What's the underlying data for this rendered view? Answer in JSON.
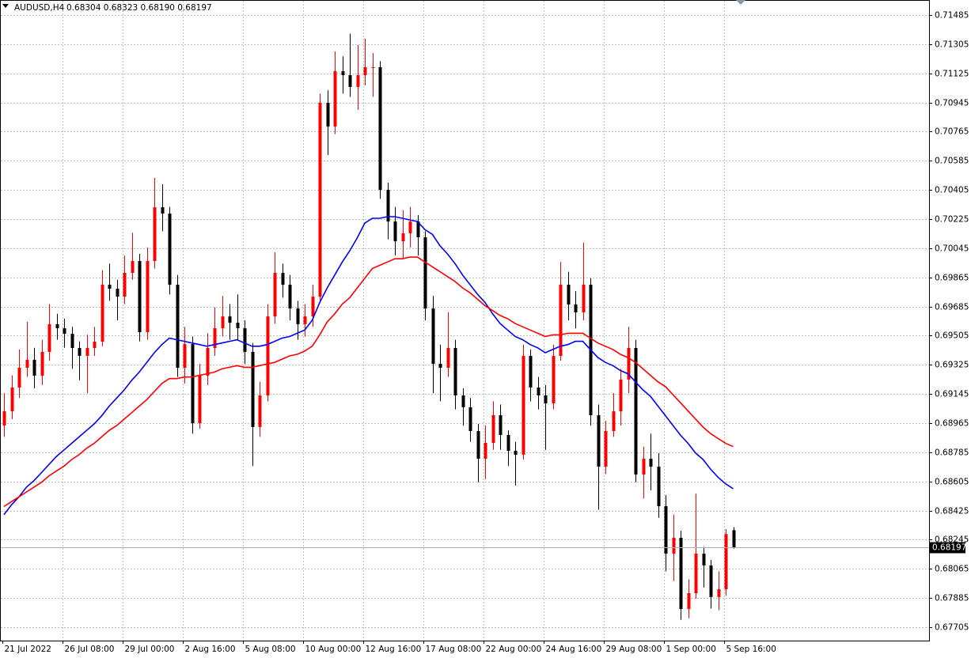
{
  "chart_data": {
    "type": "candlestick",
    "title": "AUDUSD,H4",
    "info": "0.68304 0.68323 0.68190 0.68197",
    "up_color": "#ff0000",
    "down_color": "#000000",
    "grid": true,
    "ylim": [
      0.67622,
      0.71578
    ],
    "yticks": [
      0.71485,
      0.71305,
      0.71125,
      0.70945,
      0.70765,
      0.70585,
      0.70405,
      0.70225,
      0.70045,
      0.69865,
      0.69685,
      0.69505,
      0.69325,
      0.69145,
      0.68965,
      0.68785,
      0.68605,
      0.68425,
      0.68245,
      0.68065,
      0.67885,
      0.67705
    ],
    "last_price": 0.68197,
    "categories": [
      "21 Jul 2022",
      null,
      null,
      null,
      null,
      null,
      null,
      null,
      "26 Jul 08:00",
      null,
      null,
      null,
      null,
      null,
      null,
      null,
      "29 Jul 00:00",
      null,
      null,
      null,
      null,
      null,
      null,
      null,
      "2 Aug 16:00",
      null,
      null,
      null,
      null,
      null,
      null,
      null,
      "5 Aug 08:00",
      null,
      null,
      null,
      null,
      null,
      null,
      null,
      "10 Aug 00:00",
      null,
      null,
      null,
      null,
      null,
      null,
      null,
      "12 Aug 16:00",
      null,
      null,
      null,
      null,
      null,
      null,
      null,
      "17 Aug 08:00",
      null,
      null,
      null,
      null,
      null,
      null,
      null,
      "22 Aug 00:00",
      null,
      null,
      null,
      null,
      null,
      null,
      null,
      "24 Aug 16:00",
      null,
      null,
      null,
      null,
      null,
      null,
      null,
      "29 Aug 08:00",
      null,
      null,
      null,
      null,
      null,
      null,
      null,
      "1 Sep 00:00",
      null,
      null,
      null,
      null,
      null,
      null,
      null,
      "5 Sep 16:00",
      null
    ],
    "open": [
      0.6895,
      0.69038,
      0.69185,
      0.69307,
      0.69356,
      0.69258,
      0.69405,
      0.69576,
      0.69551,
      0.69517,
      0.69429,
      0.6938,
      0.69429,
      0.69468,
      0.6982,
      0.69795,
      0.69746,
      0.69893,
      0.69966,
      0.69527,
      0.69966,
      0.70298,
      0.70259,
      0.6982,
      0.69307,
      0.69453,
      0.68965,
      0.69258,
      0.69429,
      0.69551,
      0.69624,
      0.69585,
      0.69551,
      0.69405,
      0.68941,
      0.69136,
      0.69624,
      0.69893,
      0.6982,
      0.69673,
      0.69576,
      0.69624,
      0.69746,
      0.70943,
      0.70797,
      0.71138,
      0.71114,
      0.71041,
      0.71114,
      0.71163,
      0.71163,
      0.70406,
      0.7021,
      0.70088,
      0.70137,
      0.7021,
      0.70113,
      0.69673,
      0.69331,
      0.69307,
      0.69429,
      0.69136,
      0.69063,
      0.68916,
      0.68745,
      0.68843,
      0.69014,
      0.68892,
      0.68794,
      0.6877,
      0.6938,
      0.69185,
      0.69136,
      0.69087,
      0.6938,
      0.6982,
      0.69698,
      0.69649,
      0.6982,
      0.69014,
      0.68696,
      0.68916,
      0.69038,
      0.69234,
      0.69429,
      0.68648,
      0.68745,
      0.68696,
      0.68452,
      0.68159,
      0.68257,
      0.67817,
      0.67915,
      0.68159,
      0.68086,
      0.67891,
      0.67939,
      0.68304
    ],
    "high": [
      0.6915,
      0.6926,
      0.6942,
      0.6959,
      0.6943,
      0.6948,
      0.697,
      0.6964,
      0.6961,
      0.6956,
      0.6947,
      0.6951,
      0.6956,
      0.6991,
      0.6995,
      0.6985,
      0.7,
      0.7014,
      0.7001,
      0.7005,
      0.7048,
      0.7044,
      0.703,
      0.6988,
      0.6956,
      0.695,
      0.6933,
      0.6952,
      0.6968,
      0.6975,
      0.697,
      0.6976,
      0.696,
      0.6946,
      0.6922,
      0.697,
      0.7002,
      0.6995,
      0.6988,
      0.6972,
      0.697,
      0.6982,
      0.71,
      0.7102,
      0.7126,
      0.7123,
      0.7137,
      0.713,
      0.7134,
      0.7125,
      0.712,
      0.7045,
      0.703,
      0.7028,
      0.703,
      0.7025,
      0.7015,
      0.6975,
      0.6945,
      0.6965,
      0.6948,
      0.6918,
      0.6912,
      0.6896,
      0.6895,
      0.691,
      0.6908,
      0.6892,
      0.6885,
      0.6945,
      0.6942,
      0.6925,
      0.692,
      0.6945,
      0.6996,
      0.699,
      0.6978,
      0.7008,
      0.6986,
      0.6908,
      0.6898,
      0.6915,
      0.693,
      0.6956,
      0.6948,
      0.6882,
      0.689,
      0.6878,
      0.6852,
      0.684,
      0.683,
      0.68,
      0.6853,
      0.682,
      0.6812,
      0.6805,
      0.6831,
      0.68323
    ],
    "low": [
      0.6888,
      0.6899,
      0.6912,
      0.6925,
      0.6918,
      0.692,
      0.6935,
      0.6948,
      0.6943,
      0.693,
      0.6923,
      0.6915,
      0.6938,
      0.6944,
      0.6972,
      0.696,
      0.697,
      0.6985,
      0.6947,
      0.6948,
      0.6992,
      0.7015,
      0.6976,
      0.6925,
      0.6921,
      0.689,
      0.6893,
      0.692,
      0.6938,
      0.695,
      0.6948,
      0.6948,
      0.6933,
      0.687,
      0.6888,
      0.691,
      0.6958,
      0.6974,
      0.696,
      0.6948,
      0.695,
      0.6956,
      0.6972,
      0.7062,
      0.7075,
      0.71,
      0.7098,
      0.709,
      0.7105,
      0.7098,
      0.7035,
      0.701,
      0.7,
      0.6998,
      0.7005,
      0.7,
      0.696,
      0.6915,
      0.691,
      0.6925,
      0.6905,
      0.6895,
      0.6885,
      0.686,
      0.6862,
      0.688,
      0.688,
      0.687,
      0.6858,
      0.6874,
      0.691,
      0.6905,
      0.688,
      0.6905,
      0.6935,
      0.696,
      0.6955,
      0.696,
      0.6895,
      0.6843,
      0.6865,
      0.6888,
      0.6895,
      0.6915,
      0.686,
      0.685,
      0.6855,
      0.6838,
      0.6805,
      0.6799,
      0.6775,
      0.6776,
      0.6788,
      0.6795,
      0.6782,
      0.6781,
      0.679,
      0.6819
    ],
    "close": [
      0.69038,
      0.69185,
      0.69307,
      0.69356,
      0.69258,
      0.69405,
      0.69576,
      0.69551,
      0.69517,
      0.69429,
      0.6938,
      0.69429,
      0.69468,
      0.6982,
      0.69795,
      0.69746,
      0.69893,
      0.69966,
      0.69527,
      0.69966,
      0.70298,
      0.70259,
      0.6982,
      0.69307,
      0.69453,
      0.68965,
      0.69258,
      0.69429,
      0.69551,
      0.69624,
      0.69585,
      0.69551,
      0.69405,
      0.68941,
      0.69136,
      0.69624,
      0.69893,
      0.6982,
      0.69673,
      0.69576,
      0.69624,
      0.69746,
      0.70943,
      0.70797,
      0.71138,
      0.71114,
      0.71041,
      0.71114,
      0.71163,
      0.71163,
      0.70406,
      0.7021,
      0.70088,
      0.70137,
      0.7021,
      0.70113,
      0.69673,
      0.69331,
      0.69307,
      0.69429,
      0.69136,
      0.69063,
      0.68916,
      0.68745,
      0.68843,
      0.69014,
      0.68892,
      0.68794,
      0.6877,
      0.6938,
      0.69185,
      0.69136,
      0.69087,
      0.6938,
      0.6982,
      0.69698,
      0.69649,
      0.6982,
      0.69014,
      0.68696,
      0.68916,
      0.69038,
      0.69234,
      0.69429,
      0.68648,
      0.68745,
      0.68696,
      0.68452,
      0.68159,
      0.68257,
      0.67817,
      0.67915,
      0.68159,
      0.68086,
      0.67891,
      0.67939,
      0.6828,
      0.68197
    ],
    "moving_averages": [
      {
        "color": "#0000ff",
        "values": [
          0.684,
          0.6846,
          0.6851,
          0.6857,
          0.6861,
          0.6866,
          0.6871,
          0.6876,
          0.688,
          0.6884,
          0.6888,
          0.6892,
          0.6896,
          0.6901,
          0.6907,
          0.6912,
          0.6917,
          0.6923,
          0.6928,
          0.6934,
          0.694,
          0.6945,
          0.6949,
          0.6948,
          0.6947,
          0.6946,
          0.6945,
          0.6944,
          0.6945,
          0.6946,
          0.6947,
          0.6948,
          0.6946,
          0.6944,
          0.6944,
          0.6945,
          0.6947,
          0.6949,
          0.695,
          0.6952,
          0.6954,
          0.696,
          0.6971,
          0.698,
          0.6988,
          0.6996,
          0.7003,
          0.7011,
          0.702,
          0.7023,
          0.7023,
          0.7024,
          0.7024,
          0.7023,
          0.7022,
          0.7021,
          0.7016,
          0.7013,
          0.7006,
          0.7001,
          0.6995,
          0.6988,
          0.6982,
          0.6976,
          0.6971,
          0.6964,
          0.6958,
          0.6954,
          0.695,
          0.6948,
          0.6945,
          0.6943,
          0.694,
          0.6942,
          0.6944,
          0.6945,
          0.6947,
          0.6947,
          0.6942,
          0.6937,
          0.6934,
          0.6932,
          0.6929,
          0.6927,
          0.6922,
          0.6917,
          0.6913,
          0.6907,
          0.6901,
          0.6895,
          0.6889,
          0.6884,
          0.6878,
          0.6874,
          0.6868,
          0.6863,
          0.6859,
          0.6856
        ]
      },
      {
        "color": "#ff0000",
        "values": [
          0.6845,
          0.6848,
          0.6851,
          0.6854,
          0.6857,
          0.686,
          0.6864,
          0.6867,
          0.687,
          0.6874,
          0.6877,
          0.6881,
          0.6884,
          0.6888,
          0.6892,
          0.6895,
          0.6899,
          0.6903,
          0.6907,
          0.6911,
          0.6916,
          0.6921,
          0.6924,
          0.6924,
          0.6925,
          0.6925,
          0.6926,
          0.6927,
          0.6928,
          0.693,
          0.6931,
          0.6932,
          0.6931,
          0.6931,
          0.6932,
          0.6933,
          0.6934,
          0.6936,
          0.6938,
          0.6939,
          0.6941,
          0.6944,
          0.6951,
          0.6959,
          0.6964,
          0.697,
          0.6974,
          0.698,
          0.6986,
          0.6992,
          0.6994,
          0.6996,
          0.6998,
          0.6998,
          0.6999,
          0.6999,
          0.6996,
          0.6993,
          0.699,
          0.6987,
          0.6984,
          0.698,
          0.6977,
          0.6973,
          0.6969,
          0.6966,
          0.6963,
          0.6961,
          0.6958,
          0.6956,
          0.6954,
          0.6952,
          0.695,
          0.6951,
          0.6951,
          0.6952,
          0.6952,
          0.6952,
          0.6949,
          0.6946,
          0.6944,
          0.6942,
          0.6939,
          0.6937,
          0.6934,
          0.693,
          0.6926,
          0.6922,
          0.6919,
          0.6914,
          0.6909,
          0.6904,
          0.6899,
          0.6894,
          0.689,
          0.6887,
          0.6884,
          0.6882
        ]
      }
    ]
  }
}
